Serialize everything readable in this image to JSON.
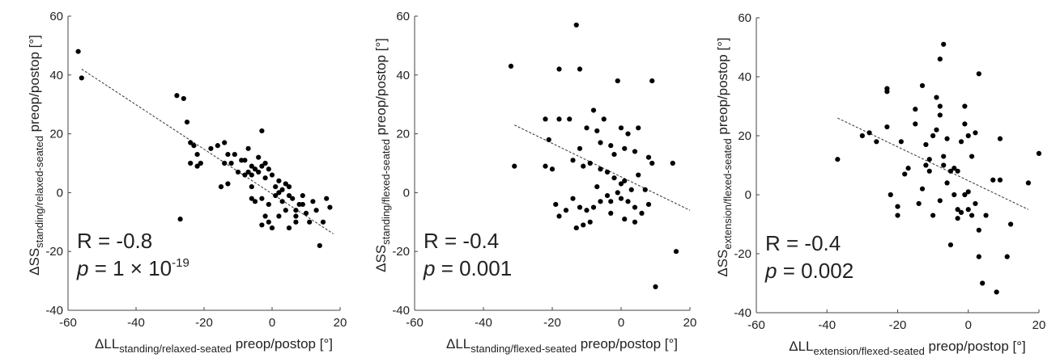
{
  "chart_data": [
    {
      "type": "scatter",
      "xlim": [
        -60,
        20
      ],
      "ylim": [
        -40,
        60
      ],
      "xticks": [
        "-60",
        "-40",
        "-20",
        "0",
        "20"
      ],
      "yticks": [
        "-40",
        "-20",
        "0",
        "20",
        "40",
        "60"
      ],
      "xlabel": {
        "main": "ΔLL",
        "sub": "standing/relaxed-seated",
        "suffix": " preop/postop [°]"
      },
      "ylabel": {
        "main": "ΔSS",
        "sub": "standing/relaxed-seated",
        "suffix": " preop/postop [°]"
      },
      "stats": {
        "r_text": "R = -0.8",
        "p_symbol": "p",
        "p_text": " = 1 × 10",
        "p_exp": "-19"
      },
      "trendline": [
        [
          -56,
          42
        ],
        [
          18,
          -14
        ]
      ],
      "points": [
        [
          -57,
          48
        ],
        [
          -56,
          39
        ],
        [
          -28,
          33
        ],
        [
          -26,
          32
        ],
        [
          -25,
          24
        ],
        [
          -24,
          17
        ],
        [
          -23,
          16
        ],
        [
          -22,
          13
        ],
        [
          -24,
          10
        ],
        [
          -21,
          10
        ],
        [
          -22,
          9
        ],
        [
          -18,
          15
        ],
        [
          -16,
          16
        ],
        [
          -14,
          17
        ],
        [
          -13,
          13
        ],
        [
          -12,
          10
        ],
        [
          -14,
          10
        ],
        [
          -15,
          2
        ],
        [
          -13,
          3
        ],
        [
          -11,
          13
        ],
        [
          -10,
          7
        ],
        [
          -9,
          11
        ],
        [
          -8,
          6
        ],
        [
          -7,
          7
        ],
        [
          -6,
          6
        ],
        [
          -8,
          11
        ],
        [
          -7,
          15
        ],
        [
          -6,
          9
        ],
        [
          -5,
          8
        ],
        [
          -4,
          7
        ],
        [
          -6,
          2
        ],
        [
          -4,
          12
        ],
        [
          -3,
          9
        ],
        [
          -2,
          10
        ],
        [
          -3,
          21
        ],
        [
          -3,
          -2
        ],
        [
          -1,
          -4
        ],
        [
          -5,
          -3
        ],
        [
          -6,
          -2
        ],
        [
          -2,
          5
        ],
        [
          -1,
          8
        ],
        [
          0,
          6
        ],
        [
          1,
          2
        ],
        [
          2,
          0
        ],
        [
          1,
          -1
        ],
        [
          2,
          4
        ],
        [
          3,
          -3
        ],
        [
          3,
          1
        ],
        [
          4,
          3
        ],
        [
          5,
          -1
        ],
        [
          4,
          -6
        ],
        [
          5,
          2
        ],
        [
          6,
          -2
        ],
        [
          7,
          -6
        ],
        [
          7,
          -8
        ],
        [
          8,
          -4
        ],
        [
          9,
          -1
        ],
        [
          9,
          -4
        ],
        [
          10,
          -7
        ],
        [
          11,
          -10
        ],
        [
          12,
          -3
        ],
        [
          13,
          -6
        ],
        [
          14,
          -18
        ],
        [
          15,
          -10
        ],
        [
          16,
          -2
        ],
        [
          17,
          -5
        ],
        [
          -2,
          -8
        ],
        [
          -1,
          -10
        ],
        [
          -3,
          -11
        ],
        [
          0,
          -12
        ],
        [
          2,
          -8
        ],
        [
          5,
          -12
        ],
        [
          7,
          -10
        ],
        [
          -27,
          -9
        ]
      ]
    },
    {
      "type": "scatter",
      "xlim": [
        -60,
        20
      ],
      "ylim": [
        -40,
        60
      ],
      "xticks": [
        "-60",
        "-40",
        "-20",
        "0",
        "20"
      ],
      "yticks": [
        "-40",
        "-20",
        "0",
        "20",
        "40",
        "60"
      ],
      "xlabel": {
        "main": "ΔLL",
        "sub": "standing/flexed-seated",
        "suffix": " preop/postop [°]"
      },
      "ylabel": {
        "main": "ΔSS",
        "sub": "standing/flexed-seated",
        "suffix": " preop/postop [°]"
      },
      "stats": {
        "r_text": "R = -0.4",
        "p_symbol": "p",
        "p_text": " = 0.001",
        "p_exp": ""
      },
      "trendline": [
        [
          -31,
          23
        ],
        [
          20,
          -6
        ]
      ],
      "points": [
        [
          -32,
          43
        ],
        [
          -31,
          9
        ],
        [
          -13,
          57
        ],
        [
          -12,
          42
        ],
        [
          -18,
          42
        ],
        [
          -1,
          38
        ],
        [
          9,
          38
        ],
        [
          -22,
          25
        ],
        [
          -18,
          25
        ],
        [
          -15,
          25
        ],
        [
          -8,
          28
        ],
        [
          -5,
          25
        ],
        [
          -21,
          18
        ],
        [
          -22,
          9
        ],
        [
          -20,
          8
        ],
        [
          -12,
          15
        ],
        [
          -10,
          22
        ],
        [
          -7,
          21
        ],
        [
          -6,
          17
        ],
        [
          -3,
          16
        ],
        [
          -2,
          13
        ],
        [
          0,
          22
        ],
        [
          2,
          20
        ],
        [
          1,
          15
        ],
        [
          4,
          14
        ],
        [
          5,
          22
        ],
        [
          -14,
          11
        ],
        [
          -11,
          9
        ],
        [
          -9,
          10
        ],
        [
          -6,
          8
        ],
        [
          -4,
          7
        ],
        [
          -2,
          5
        ],
        [
          0,
          3
        ],
        [
          1,
          4
        ],
        [
          3,
          1
        ],
        [
          5,
          6
        ],
        [
          7,
          1
        ],
        [
          8,
          12
        ],
        [
          9,
          10
        ],
        [
          -19,
          -4
        ],
        [
          -16,
          -6
        ],
        [
          -14,
          -2
        ],
        [
          -12,
          -5
        ],
        [
          -10,
          -6
        ],
        [
          -8,
          -5
        ],
        [
          -6,
          -3
        ],
        [
          -4,
          -1
        ],
        [
          -3,
          -3
        ],
        [
          -1,
          0
        ],
        [
          0,
          -2
        ],
        [
          2,
          -3
        ],
        [
          4,
          -5
        ],
        [
          6,
          -7
        ],
        [
          8,
          -4
        ],
        [
          -18,
          -8
        ],
        [
          -11,
          -11
        ],
        [
          -9,
          -10
        ],
        [
          -3,
          -7
        ],
        [
          1,
          -9
        ],
        [
          4,
          -10
        ],
        [
          10,
          -32
        ],
        [
          16,
          -20
        ],
        [
          15,
          10
        ],
        [
          -7,
          2
        ],
        [
          -13,
          -12
        ]
      ]
    },
    {
      "type": "scatter",
      "xlim": [
        -60,
        20
      ],
      "ylim": [
        -40,
        60
      ],
      "xticks": [
        "-60",
        "-40",
        "-20",
        "0",
        "20"
      ],
      "yticks": [
        "-40",
        "-20",
        "0",
        "20",
        "40",
        "60"
      ],
      "xlabel": {
        "main": "ΔLL",
        "sub": "extension/flexed-seated",
        "suffix": " preop/postop [°]"
      },
      "ylabel": {
        "main": "ΔSS",
        "sub": "extension/flexed-seated",
        "suffix": " preop/postop [°]"
      },
      "stats": {
        "r_text": "R = -0.4",
        "p_symbol": "p",
        "p_text": " = 0.002",
        "p_exp": ""
      },
      "trendline": [
        [
          -37,
          26
        ],
        [
          17,
          -5
        ]
      ],
      "points": [
        [
          -37,
          12
        ],
        [
          -30,
          20
        ],
        [
          -28,
          21
        ],
        [
          -26,
          18
        ],
        [
          -23,
          36
        ],
        [
          -23,
          35
        ],
        [
          -23,
          23
        ],
        [
          -22,
          0
        ],
        [
          -20,
          -4
        ],
        [
          -20,
          -7
        ],
        [
          -19,
          18
        ],
        [
          -18,
          7
        ],
        [
          -17,
          9
        ],
        [
          -15,
          24
        ],
        [
          -15,
          29
        ],
        [
          -13,
          37
        ],
        [
          -12,
          17
        ],
        [
          -12,
          10
        ],
        [
          -11,
          12
        ],
        [
          -11,
          8
        ],
        [
          -10,
          20
        ],
        [
          -9,
          22
        ],
        [
          -9,
          33
        ],
        [
          -8,
          30
        ],
        [
          -8,
          27
        ],
        [
          -8,
          46
        ],
        [
          -7,
          51
        ],
        [
          -7,
          13
        ],
        [
          -7,
          10
        ],
        [
          -6,
          19
        ],
        [
          -6,
          4
        ],
        [
          -5,
          8
        ],
        [
          -4,
          0
        ],
        [
          -4,
          9
        ],
        [
          -3,
          8
        ],
        [
          -3,
          -8
        ],
        [
          -2,
          -6
        ],
        [
          -2,
          18
        ],
        [
          -1,
          30
        ],
        [
          -1,
          24
        ],
        [
          0,
          -5
        ],
        [
          0,
          1
        ],
        [
          0,
          20
        ],
        [
          1,
          13
        ],
        [
          2,
          21
        ],
        [
          2,
          -3
        ],
        [
          3,
          41
        ],
        [
          3,
          -12
        ],
        [
          3,
          -21
        ],
        [
          4,
          -30
        ],
        [
          5,
          -7
        ],
        [
          7,
          5
        ],
        [
          8,
          -33
        ],
        [
          9,
          5
        ],
        [
          9,
          19
        ],
        [
          11,
          -21
        ],
        [
          12,
          -10
        ],
        [
          17,
          4
        ],
        [
          20,
          14
        ],
        [
          -5,
          -17
        ],
        [
          -13,
          2
        ],
        [
          -8,
          -2
        ],
        [
          -10,
          -7
        ],
        [
          -1,
          0
        ],
        [
          -3,
          -5
        ],
        [
          1,
          -7
        ],
        [
          -14,
          -3
        ]
      ]
    }
  ]
}
